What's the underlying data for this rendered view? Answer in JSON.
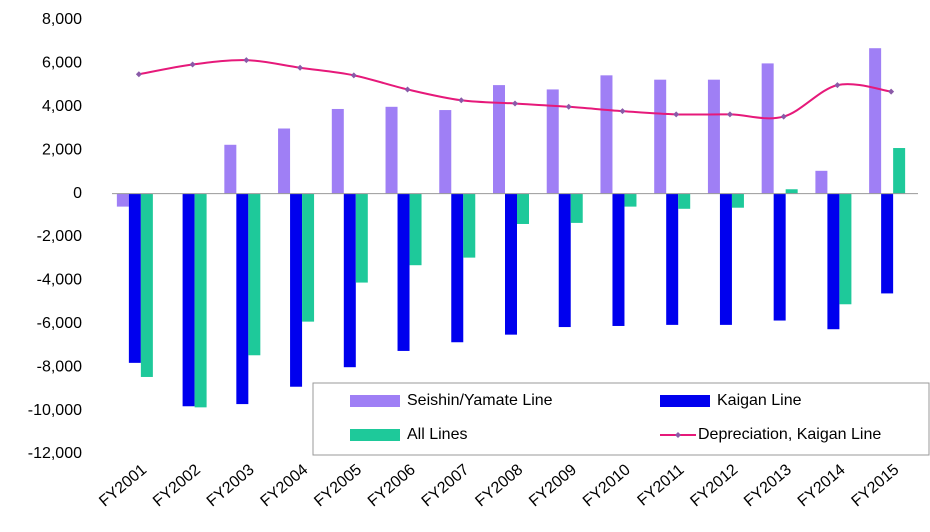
{
  "chart_data": {
    "type": "bar",
    "categories": [
      "FY2001",
      "FY2002",
      "FY2003",
      "FY2004",
      "FY2005",
      "FY2006",
      "FY2007",
      "FY2008",
      "FY2009",
      "FY2010",
      "FY2011",
      "FY2012",
      "FY2013",
      "FY2014",
      "FY2015"
    ],
    "series": [
      {
        "name": "Seishin/Yamate Line",
        "color": "#9f7ff5",
        "type": "bar",
        "values": [
          -600,
          0,
          2250,
          3000,
          3900,
          4000,
          3850,
          5000,
          4800,
          5450,
          5250,
          5250,
          6000,
          1050,
          6700
        ]
      },
      {
        "name": "Kaigan Line",
        "color": "#0000ee",
        "type": "bar",
        "values": [
          -7800,
          -9800,
          -9700,
          -8900,
          -8000,
          -7250,
          -6850,
          -6500,
          -6150,
          -6100,
          -6050,
          -6050,
          -5850,
          -6250,
          -4600
        ]
      },
      {
        "name": "All Lines",
        "color": "#1ec99a",
        "type": "bar",
        "values": [
          -8450,
          -9850,
          -7450,
          -5900,
          -4100,
          -3300,
          -2950,
          -1400,
          -1350,
          -600,
          -700,
          -650,
          200,
          -5100,
          2100
        ]
      },
      {
        "name": "Depreciation, Kaigan Line",
        "color": "#e6197a",
        "type": "line",
        "values": [
          5500,
          5950,
          6150,
          5800,
          5450,
          4800,
          4300,
          4150,
          4000,
          3800,
          3650,
          3650,
          3550,
          5000,
          4700
        ]
      }
    ],
    "ylim": [
      -12000,
      8000
    ],
    "yticks": [
      {
        "value": -12000,
        "label": "-12,000"
      },
      {
        "value": -10000,
        "label": "-10,000"
      },
      {
        "value": -8000,
        "label": "-8,000"
      },
      {
        "value": -6000,
        "label": "-6,000"
      },
      {
        "value": -4000,
        "label": "-4,000"
      },
      {
        "value": -2000,
        "label": "-2,000"
      },
      0,
      {
        "value": 2000,
        "label": "2,000"
      },
      {
        "value": 4000,
        "label": "4,000"
      },
      {
        "value": 6000,
        "label": "6,000"
      },
      {
        "value": 8000,
        "label": "8,000"
      }
    ],
    "grid": false
  }
}
